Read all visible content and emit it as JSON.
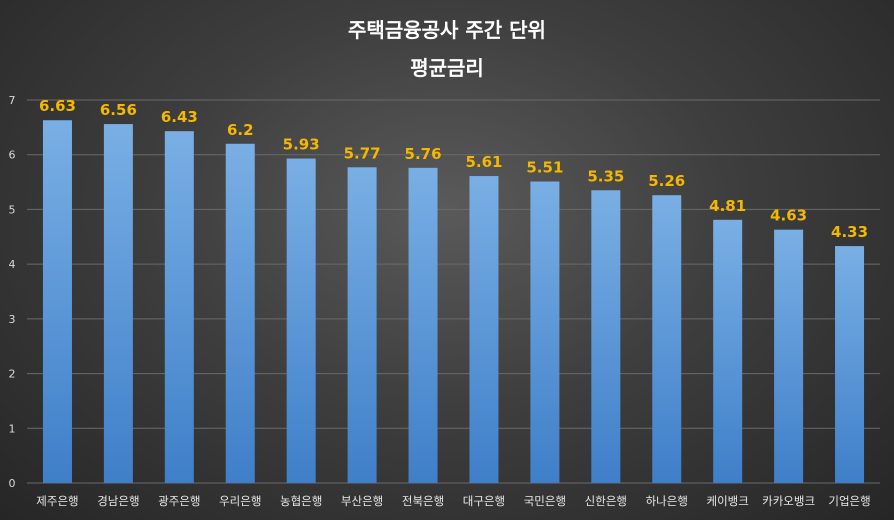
{
  "chart_data": {
    "type": "bar",
    "title_lines": [
      "주택금융공사 주간 단위",
      "평균금리"
    ],
    "categories": [
      "제주은행",
      "경남은행",
      "광주은행",
      "우리은행",
      "농협은행",
      "부산은행",
      "전북은행",
      "대구은행",
      "국민은행",
      "신한은행",
      "하나은행",
      "케이뱅크",
      "카카오뱅크",
      "기업은행"
    ],
    "values": [
      6.63,
      6.56,
      6.43,
      6.2,
      5.93,
      5.77,
      5.76,
      5.61,
      5.51,
      5.35,
      5.26,
      4.81,
      4.63,
      4.33
    ],
    "value_labels": [
      "6.63",
      "6.56",
      "6.43",
      "6.2",
      "5.93",
      "5.77",
      "5.76",
      "5.61",
      "5.51",
      "5.35",
      "5.26",
      "4.81",
      "4.63",
      "4.33"
    ],
    "ylim": [
      0,
      7
    ],
    "y_ticks": [
      "0",
      "1",
      "2",
      "3",
      "4",
      "5",
      "6",
      "7"
    ],
    "grid": true,
    "legend": false,
    "colors": {
      "bar_top": "#79afe4",
      "bar_bottom": "#3f7fc9",
      "data_label": "#f5b800",
      "grid": "#6a6a6a"
    }
  }
}
